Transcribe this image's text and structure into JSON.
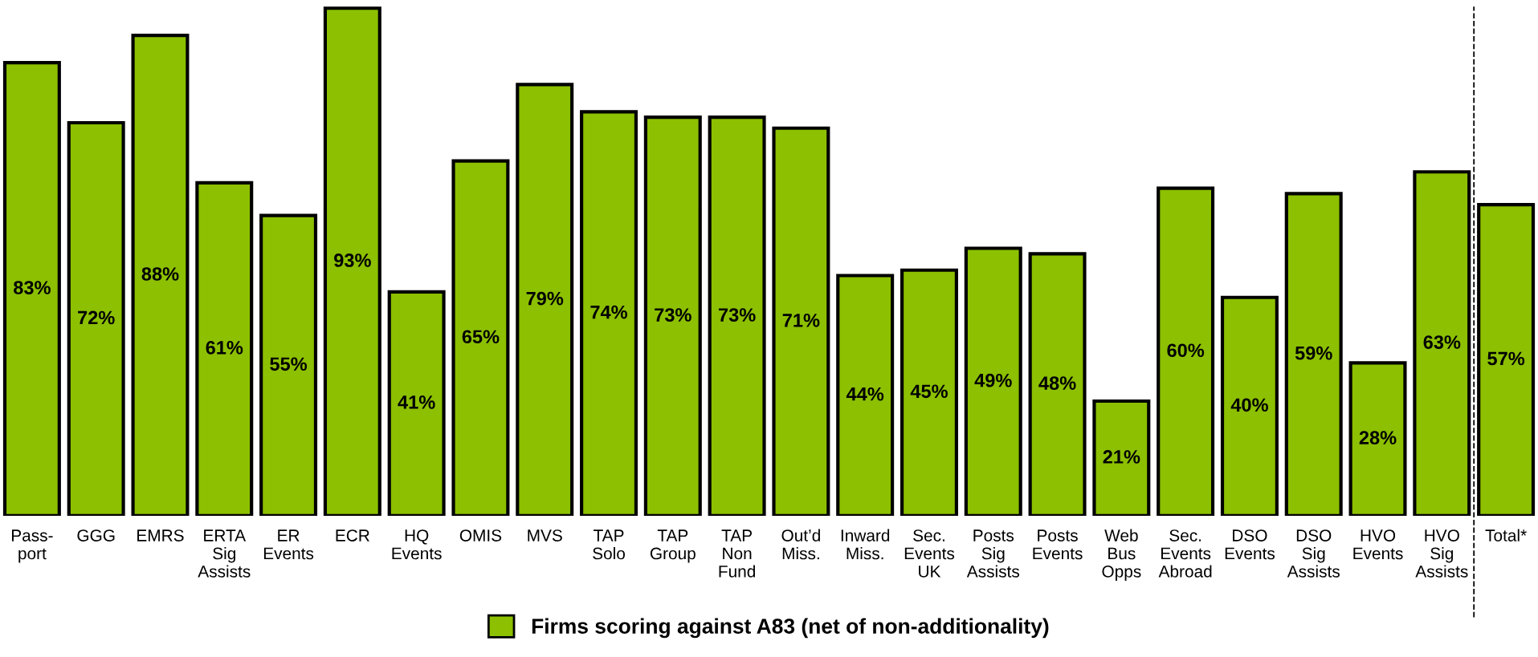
{
  "chart_data": {
    "type": "bar",
    "categories": [
      "Pass-\nport",
      "GGG",
      "EMRS",
      "ERTA\nSig\nAssists",
      "ER\nEvents",
      "ECR",
      "HQ\nEvents",
      "OMIS",
      "MVS",
      "TAP\nSolo",
      "TAP\nGroup",
      "TAP\nNon\nFund",
      "Out’d\nMiss.",
      "Inward\nMiss.",
      "Sec.\nEvents\nUK",
      "Posts\nSig\nAssists",
      "Posts\nEvents",
      "Web\nBus\nOpps",
      "Sec.\nEvents\nAbroad",
      "DSO\nEvents",
      "DSO\nSig\nAssists",
      "HVO\nEvents",
      "HVO\nSig\nAssists",
      "Total*"
    ],
    "series": [
      {
        "name": "Firms scoring against A83 (net of non-additionality)",
        "color": "#8cc000",
        "values": [
          83,
          72,
          88,
          61,
          55,
          93,
          41,
          65,
          79,
          74,
          73,
          73,
          71,
          44,
          45,
          49,
          48,
          21,
          60,
          40,
          59,
          28,
          63,
          57
        ],
        "value_labels": [
          "83%",
          "72%",
          "88%",
          "61%",
          "55%",
          "93%",
          "41%",
          "65%",
          "79%",
          "74%",
          "73%",
          "73%",
          "71%",
          "44%",
          "45%",
          "49%",
          "48%",
          "21%",
          "60%",
          "40%",
          "59%",
          "28%",
          "63%",
          "57%"
        ]
      }
    ],
    "legend": "bottom"
  }
}
